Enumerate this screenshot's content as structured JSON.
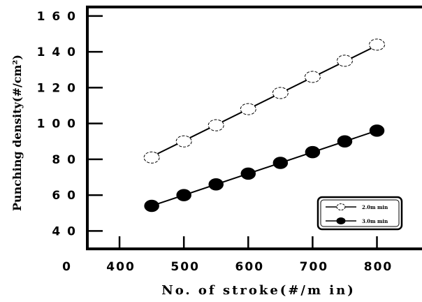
{
  "chart_data": {
    "type": "line",
    "title": "",
    "xlabel": "No. of stroke(#/m in)",
    "ylabel": "Punching density(#/cm²)",
    "xlim": [
      350,
      870
    ],
    "ylim": [
      30,
      165
    ],
    "x_ticks": [
      400,
      500,
      600,
      700,
      800
    ],
    "y_ticks": [
      40,
      60,
      80,
      100,
      120,
      140,
      160
    ],
    "x_tick_labels": [
      "400",
      "500",
      "600",
      "700",
      "800"
    ],
    "y_tick_labels": [
      "4 0",
      "6 0",
      "8 0",
      "1 0 0",
      "1 2 0",
      "1 4 0",
      "1 6 0"
    ],
    "origin_label": "0",
    "grid": false,
    "legend": "bottom-right",
    "series": [
      {
        "name": "2.0m min",
        "marker": "open-circle",
        "color": "#000000",
        "x": [
          450,
          500,
          550,
          600,
          650,
          700,
          750,
          800
        ],
        "y": [
          81,
          90,
          99,
          108,
          117,
          126,
          135,
          144
        ],
        "fit": [
          [
            450,
            81.5
          ],
          [
            800,
            143.5
          ]
        ]
      },
      {
        "name": "3.0m min",
        "marker": "filled-circle",
        "color": "#000000",
        "x": [
          450,
          500,
          550,
          600,
          650,
          700,
          750,
          800
        ],
        "y": [
          54,
          60,
          66,
          72,
          78,
          84,
          90,
          96
        ],
        "fit": [
          [
            450,
            54
          ],
          [
            800,
            96
          ]
        ]
      }
    ]
  }
}
